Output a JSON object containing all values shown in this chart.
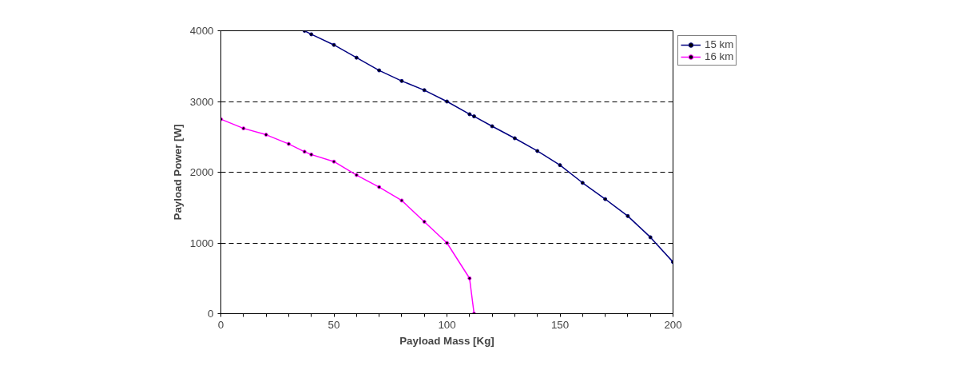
{
  "chart_data": {
    "type": "line",
    "xlabel": "Payload Mass [Kg]",
    "ylabel": "Payload Power [W]",
    "xlim": [
      0,
      200
    ],
    "ylim": [
      0,
      4000
    ],
    "xticks": [
      0,
      {
        "value": 10,
        "label": null
      },
      {
        "value": 20,
        "label": null
      },
      {
        "value": 30,
        "label": null
      },
      {
        "value": 40,
        "label": null
      },
      50,
      {
        "value": 60,
        "label": null
      },
      {
        "value": 70,
        "label": null
      },
      {
        "value": 80,
        "label": null
      },
      {
        "value": 90,
        "label": null
      },
      100,
      {
        "value": 110,
        "label": null
      },
      {
        "value": 120,
        "label": null
      },
      {
        "value": 130,
        "label": null
      },
      {
        "value": 140,
        "label": null
      },
      150,
      {
        "value": 160,
        "label": null
      },
      {
        "value": 170,
        "label": null
      },
      {
        "value": 180,
        "label": null
      },
      {
        "value": 190,
        "label": null
      },
      200
    ],
    "yticks": [
      0,
      1000,
      2000,
      3000,
      4000
    ],
    "grid": "y",
    "legend": "top right",
    "marker": "circle",
    "line_style": "solid",
    "series": [
      {
        "name": "15 km",
        "color": "#000080",
        "x": [
          37,
          40,
          50,
          60,
          70,
          80,
          90,
          100,
          110,
          112,
          120,
          130,
          140,
          150,
          160,
          170,
          180,
          190,
          200
        ],
        "values": [
          4000,
          3950,
          3800,
          3620,
          3440,
          3290,
          3160,
          3000,
          2820,
          2790,
          2650,
          2480,
          2300,
          2100,
          1850,
          1620,
          1380,
          1080,
          730
        ]
      },
      {
        "name": "16 km",
        "color": "#ff00ff",
        "x": [
          0,
          10,
          20,
          30,
          37,
          40,
          50,
          60,
          70,
          80,
          90,
          100,
          110,
          112
        ],
        "values": [
          2750,
          2620,
          2530,
          2400,
          2290,
          2250,
          2150,
          1960,
          1790,
          1600,
          1300,
          1000,
          500,
          0
        ]
      }
    ]
  }
}
